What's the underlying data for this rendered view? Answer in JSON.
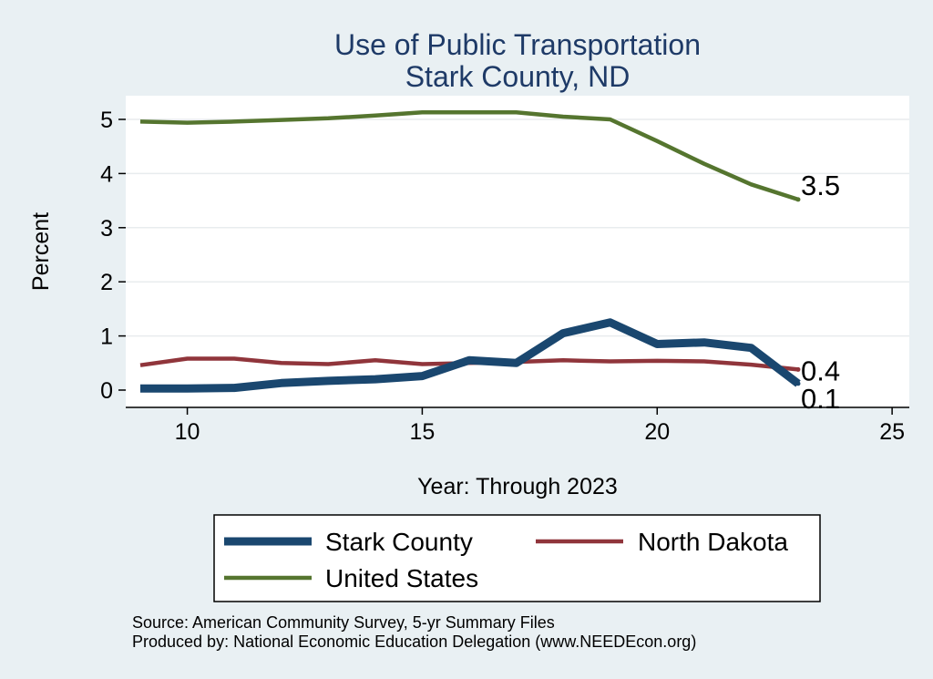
{
  "chart_data": {
    "type": "line",
    "title": "Use of Public Transportation",
    "subtitle": "Stark County, ND",
    "xlabel": "Year: Through 2023",
    "ylabel": "Percent",
    "xlim": [
      9,
      25
    ],
    "ylim": [
      0,
      5.3
    ],
    "x_ticks": [
      10,
      15,
      20,
      25
    ],
    "y_ticks": [
      0,
      1,
      2,
      3,
      4,
      5
    ],
    "grid": "horizontal",
    "x": [
      9,
      10,
      11,
      12,
      13,
      14,
      15,
      16,
      17,
      18,
      19,
      20,
      21,
      22,
      23
    ],
    "series": [
      {
        "name": "Stark County",
        "color": "#1a476f",
        "values": [
          0.03,
          0.03,
          0.04,
          0.13,
          0.17,
          0.2,
          0.26,
          0.55,
          0.5,
          1.05,
          1.25,
          0.85,
          0.88,
          0.78,
          0.12
        ],
        "end_label": "0.1"
      },
      {
        "name": "North Dakota",
        "color": "#90353b",
        "values": [
          0.46,
          0.58,
          0.58,
          0.5,
          0.48,
          0.55,
          0.48,
          0.5,
          0.52,
          0.55,
          0.53,
          0.54,
          0.53,
          0.47,
          0.38
        ],
        "end_label": "0.4"
      },
      {
        "name": "United States",
        "color": "#55752f",
        "values": [
          4.96,
          4.94,
          4.96,
          4.99,
          5.02,
          5.07,
          5.13,
          5.13,
          5.13,
          5.05,
          5.0,
          4.6,
          4.18,
          3.8,
          3.52
        ],
        "end_label": "3.5"
      }
    ],
    "legend_position": "bottom"
  },
  "notes": {
    "source": "Source: American Community Survey, 5-yr Summary Files",
    "produced_by": "Produced by: National Economic Education Delegation (www.NEEDEcon.org)"
  }
}
